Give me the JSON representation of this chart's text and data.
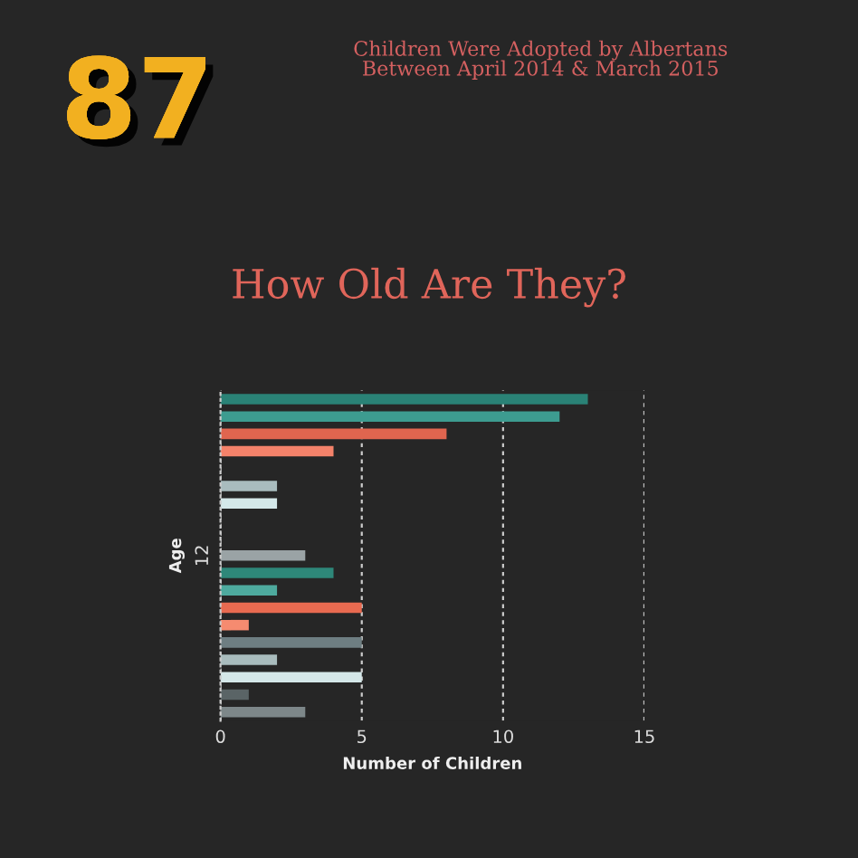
{
  "chart_data": {
    "type": "bar",
    "orientation": "horizontal",
    "title": "How Old Are They?",
    "annotations": [
      "87",
      "Children Were Adopted by Albertans\nBetween April 2014 & March 2015"
    ],
    "xlabel": "Number of Children",
    "ylabel": "Age",
    "categories": [
      null,
      null,
      null,
      null,
      null,
      null,
      null,
      null,
      null,
      "12",
      null,
      null,
      null,
      null,
      null,
      null,
      null,
      null,
      null
    ],
    "values": [
      13,
      12,
      8,
      4,
      null,
      2,
      2,
      null,
      null,
      3,
      4,
      2,
      5,
      1,
      5,
      2,
      5,
      1,
      3
    ],
    "colors": [
      "#2a8276",
      "#3d9c90",
      "#e0654f",
      "#f4826a",
      "#7a8a8c",
      "#a9bcbe",
      "#d4e8e9",
      "#888888",
      "#888888",
      "#9aa3a5",
      "#2e8779",
      "#4eaa9e",
      "#e86a50",
      "#f68b70",
      "#6e7e82",
      "#a9bcbd",
      "#d4e7e8",
      "#5a6466",
      "#7d8789"
    ],
    "xlim": [
      0,
      15
    ],
    "xticks": [
      0,
      5,
      10,
      15
    ],
    "grid": "x"
  }
}
